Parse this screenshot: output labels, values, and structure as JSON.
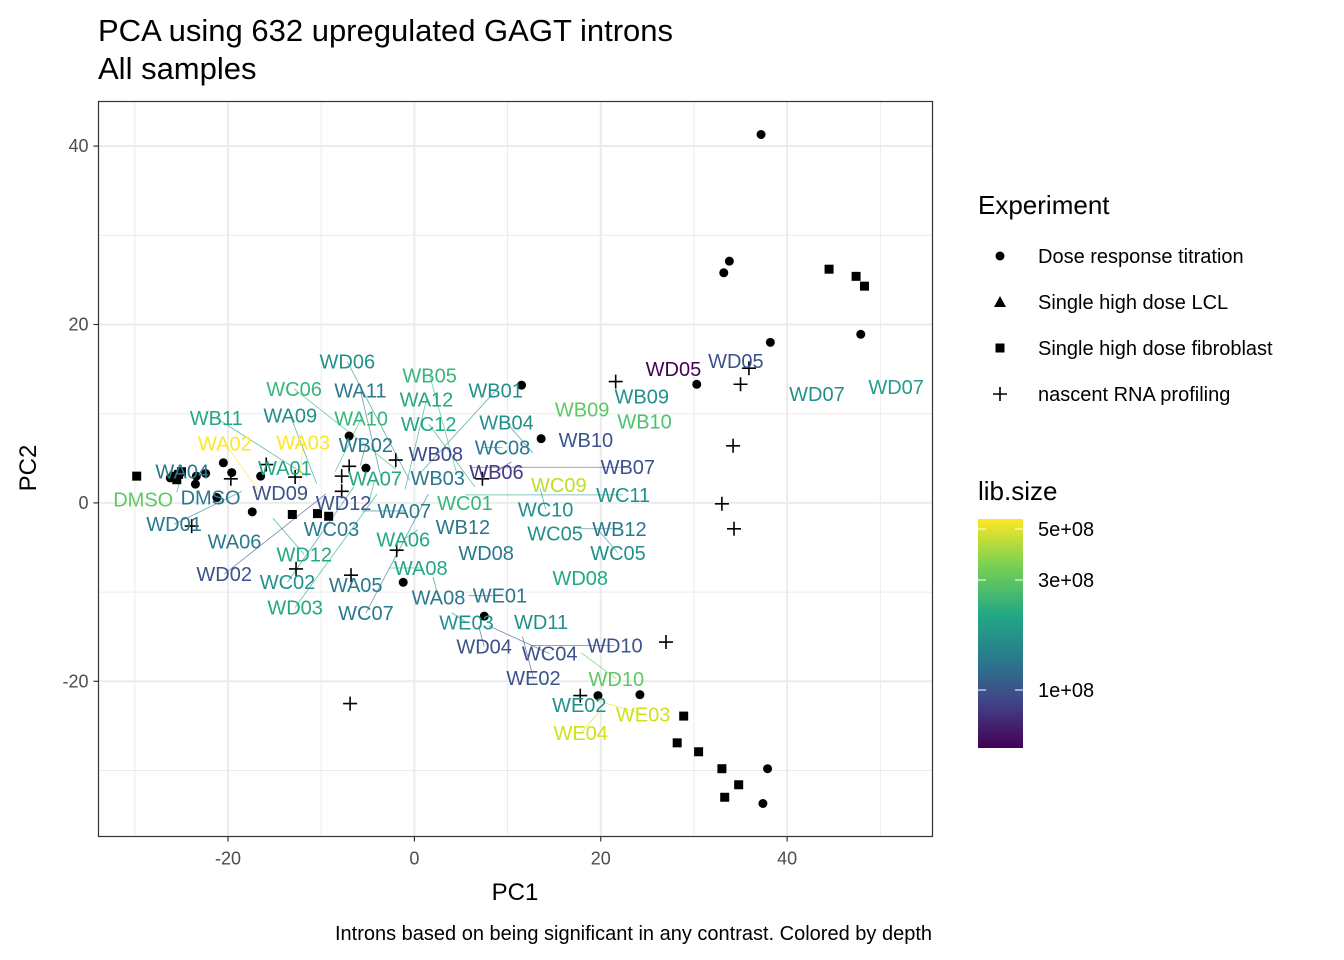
{
  "chart_data": {
    "type": "scatter",
    "title": "PCA using 632 upregulated GAGT introns",
    "subtitle": "All samples",
    "caption": "Introns based on being significant in any contrast. Colored by depth",
    "xlabel": "PC1",
    "ylabel": "PC2",
    "xlim": [
      -33.9,
      55.6
    ],
    "ylim": [
      -37.4,
      45.0
    ],
    "xticks": [
      -20,
      0,
      20,
      40
    ],
    "yticks": [
      -20,
      0,
      20,
      40
    ],
    "grid": true,
    "legend_placement": "right",
    "shape_legend": {
      "title": "Experiment",
      "entries": [
        {
          "label": "Dose response titration",
          "shape": "circle"
        },
        {
          "label": "Single high dose LCL",
          "shape": "triangle"
        },
        {
          "label": "Single high dose fibroblast",
          "shape": "square"
        },
        {
          "label": "nascent RNA profiling",
          "shape": "cross"
        }
      ]
    },
    "color_legend": {
      "title": "lib.size",
      "ticks": [
        "5e+08",
        "3e+08",
        "1e+08"
      ],
      "palette": [
        "#fde725",
        "#7ad151",
        "#22a884",
        "#2a788e",
        "#414487",
        "#440154"
      ]
    },
    "points": [
      {
        "x": 37.2,
        "y": 41.3,
        "shape": "circle"
      },
      {
        "x": 33.8,
        "y": 27.1,
        "shape": "circle"
      },
      {
        "x": 33.2,
        "y": 25.8,
        "shape": "circle"
      },
      {
        "x": 38.2,
        "y": 18.0,
        "shape": "circle"
      },
      {
        "x": 47.9,
        "y": 18.9,
        "shape": "circle"
      },
      {
        "x": 30.3,
        "y": 13.3,
        "shape": "circle"
      },
      {
        "x": 11.5,
        "y": 13.2,
        "shape": "circle"
      },
      {
        "x": -7.0,
        "y": 7.5,
        "shape": "circle"
      },
      {
        "x": 13.6,
        "y": 7.2,
        "shape": "circle"
      },
      {
        "x": -5.2,
        "y": 3.9,
        "shape": "circle"
      },
      {
        "x": -20.5,
        "y": 4.5,
        "shape": "circle"
      },
      {
        "x": -19.6,
        "y": 3.4,
        "shape": "circle"
      },
      {
        "x": -22.4,
        "y": 3.3,
        "shape": "circle"
      },
      {
        "x": -23.4,
        "y": 3.0,
        "shape": "circle"
      },
      {
        "x": -16.5,
        "y": 3.0,
        "shape": "circle"
      },
      {
        "x": -23.5,
        "y": 2.1,
        "shape": "circle"
      },
      {
        "x": -21.2,
        "y": 0.6,
        "shape": "circle"
      },
      {
        "x": -17.4,
        "y": -1.0,
        "shape": "circle"
      },
      {
        "x": -26.2,
        "y": 2.8,
        "shape": "circle"
      },
      {
        "x": -1.2,
        "y": -8.9,
        "shape": "circle"
      },
      {
        "x": 7.5,
        "y": -12.7,
        "shape": "circle"
      },
      {
        "x": 19.7,
        "y": -21.6,
        "shape": "circle"
      },
      {
        "x": 24.2,
        "y": -21.5,
        "shape": "circle"
      },
      {
        "x": 37.9,
        "y": -29.8,
        "shape": "circle"
      },
      {
        "x": 37.4,
        "y": -33.7,
        "shape": "circle"
      },
      {
        "x": 44.5,
        "y": 26.2,
        "shape": "square"
      },
      {
        "x": 47.4,
        "y": 25.4,
        "shape": "square"
      },
      {
        "x": 48.3,
        "y": 24.3,
        "shape": "square"
      },
      {
        "x": -29.8,
        "y": 3.0,
        "shape": "square"
      },
      {
        "x": -25.8,
        "y": 3.0,
        "shape": "square"
      },
      {
        "x": -25.3,
        "y": 3.2,
        "shape": "square"
      },
      {
        "x": -25.0,
        "y": 3.5,
        "shape": "square"
      },
      {
        "x": -25.5,
        "y": 2.6,
        "shape": "square"
      },
      {
        "x": -13.1,
        "y": -1.3,
        "shape": "square"
      },
      {
        "x": -10.4,
        "y": -1.2,
        "shape": "square"
      },
      {
        "x": -9.2,
        "y": -1.5,
        "shape": "square"
      },
      {
        "x": 28.9,
        "y": -23.9,
        "shape": "square"
      },
      {
        "x": 28.2,
        "y": -26.9,
        "shape": "square"
      },
      {
        "x": 30.5,
        "y": -27.9,
        "shape": "square"
      },
      {
        "x": 33.0,
        "y": -29.8,
        "shape": "square"
      },
      {
        "x": 33.3,
        "y": -33.0,
        "shape": "square"
      },
      {
        "x": 34.8,
        "y": -31.6,
        "shape": "square"
      },
      {
        "x": 21.6,
        "y": 13.6,
        "shape": "cross"
      },
      {
        "x": 35.9,
        "y": 15.1,
        "shape": "cross"
      },
      {
        "x": 35.0,
        "y": 13.3,
        "shape": "cross"
      },
      {
        "x": 34.2,
        "y": 6.4,
        "shape": "cross"
      },
      {
        "x": 33.0,
        "y": -0.1,
        "shape": "cross"
      },
      {
        "x": 34.3,
        "y": -2.9,
        "shape": "cross"
      },
      {
        "x": 27.0,
        "y": -15.6,
        "shape": "cross"
      },
      {
        "x": 17.8,
        "y": -21.6,
        "shape": "cross"
      },
      {
        "x": -6.9,
        "y": -22.5,
        "shape": "cross"
      },
      {
        "x": -12.7,
        "y": -7.4,
        "shape": "cross"
      },
      {
        "x": -6.8,
        "y": -8.1,
        "shape": "cross"
      },
      {
        "x": -1.9,
        "y": -5.3,
        "shape": "cross"
      },
      {
        "x": -23.9,
        "y": -2.6,
        "shape": "cross"
      },
      {
        "x": 7.3,
        "y": 2.7,
        "shape": "cross"
      },
      {
        "x": -2.0,
        "y": 4.8,
        "shape": "cross"
      },
      {
        "x": -7.0,
        "y": 4.1,
        "shape": "cross"
      },
      {
        "x": -7.8,
        "y": 3.0,
        "shape": "cross"
      },
      {
        "x": -7.8,
        "y": 1.3,
        "shape": "cross"
      },
      {
        "x": -15.9,
        "y": 4.3,
        "shape": "cross"
      },
      {
        "x": -19.7,
        "y": 2.7,
        "shape": "cross"
      },
      {
        "x": -12.8,
        "y": 2.9,
        "shape": "cross"
      }
    ],
    "labels": [
      {
        "text": "WD05",
        "x": 27.8,
        "y": 15.0,
        "color": "#440154"
      },
      {
        "text": "WD05",
        "x": 34.5,
        "y": 15.9,
        "color": "#3b528b"
      },
      {
        "text": "WB09",
        "x": 24.4,
        "y": 11.9,
        "color": "#21908c"
      },
      {
        "text": "WB09",
        "x": 18.8,
        "y": 11.0,
        "color": "#5ec962"
      },
      {
        "text": "WB10",
        "x": 24.7,
        "y": 9.1,
        "color": "#4ac16d"
      },
      {
        "text": "WB10",
        "x": 19.2,
        "y": 7.6,
        "color": "#3b528b"
      },
      {
        "text": "WD07",
        "x": 43.2,
        "y": 12.2,
        "color": "#21908c"
      },
      {
        "text": "WD07",
        "x": 51.7,
        "y": 13.0,
        "color": "#259c8a"
      },
      {
        "text": "WC09",
        "x": 15.5,
        "y": 2.0,
        "color": "#bddf26"
      },
      {
        "text": "WC10",
        "x": 13.5,
        "y": 1.6,
        "color": "#21908c"
      },
      {
        "text": "WB12",
        "x": 5.2,
        "y": -2.7,
        "color": "#2a788e"
      },
      {
        "text": "WC05",
        "x": 14.3,
        "y": -2.9,
        "color": "#21908c"
      },
      {
        "text": "WB12",
        "x": 17.5,
        "y": -2.9,
        "color": "#2a788e"
      },
      {
        "text": "WC05",
        "x": 19.6,
        "y": -2.9,
        "color": "#21908c"
      },
      {
        "text": "WD08",
        "x": 7.7,
        "y": -5.6,
        "color": "#2a788e"
      },
      {
        "text": "WD08",
        "x": 17.8,
        "y": -8.4,
        "color": "#22a884"
      },
      {
        "text": "WA06",
        "x": -19.3,
        "y": -4.3,
        "color": "#2a788e"
      },
      {
        "text": "WC03",
        "x": -8.9,
        "y": -2.9,
        "color": "#2a788e"
      },
      {
        "text": "WA06",
        "x": 0.4,
        "y": -3.0,
        "color": "#22a884"
      },
      {
        "text": "WA05",
        "x": -6.3,
        "y": -9.2,
        "color": "#2a788e"
      },
      {
        "text": "WA08",
        "x": -2.7,
        "y": -7.3,
        "color": "#22a884"
      },
      {
        "text": "WA08",
        "x": 2.0,
        "y": -8.3,
        "color": "#2a788e"
      },
      {
        "text": "WE01",
        "x": 5.8,
        "y": -10.4,
        "color": "#2a788e"
      },
      {
        "text": "WE03",
        "x": 4.0,
        "y": -12.3,
        "color": "#21908c"
      },
      {
        "text": "WD11",
        "x": 12.8,
        "y": -12.8,
        "color": "#21908c"
      },
      {
        "text": "WD04",
        "x": 6.9,
        "y": -13.8,
        "color": "#3b528b"
      },
      {
        "text": "WC04",
        "x": 8.0,
        "y": -13.8,
        "color": "#3b528b"
      },
      {
        "text": "WE02",
        "x": 11.6,
        "y": -15.0,
        "color": "#3b528b"
      },
      {
        "text": "WD10",
        "x": 12.5,
        "y": -16.0,
        "color": "#3b528b"
      },
      {
        "text": "WD10",
        "x": 17.9,
        "y": -16.8,
        "color": "#5ec962"
      },
      {
        "text": "WE02",
        "x": 16.9,
        "y": -22.1,
        "color": "#21908c"
      },
      {
        "text": "WE03",
        "x": 19.4,
        "y": -22.1,
        "color": "#d0e11c"
      },
      {
        "text": "WE04",
        "x": 20.1,
        "y": -23.1,
        "color": "#d0e11c"
      },
      {
        "text": "DMSO",
        "x": -29.1,
        "y": 0.4,
        "color": "#5ec962"
      },
      {
        "text": "DMSO",
        "x": -23.0,
        "y": 0.6,
        "color": "#2a788e"
      },
      {
        "text": "WA04",
        "x": -25.5,
        "y": 1.2,
        "color": "#2a788e"
      },
      {
        "text": "WD09",
        "x": -14.4,
        "y": 1.1,
        "color": "#3b528b"
      },
      {
        "text": "WD12",
        "x": -15.2,
        "y": -1.7,
        "color": "#22a884"
      },
      {
        "text": "WD12",
        "x": -7.6,
        "y": -1.6,
        "color": "#3b528b"
      },
      {
        "text": "WA07",
        "x": -5.6,
        "y": -0.9,
        "color": "#2a788e"
      },
      {
        "text": "WA07",
        "x": -4.8,
        "y": 0.4,
        "color": "#22a884"
      },
      {
        "text": "WC01",
        "x": 4.3,
        "y": 0.0,
        "color": "#35b779"
      },
      {
        "text": "WB08",
        "x": 2.3,
        "y": 5.5,
        "color": "#3f4788"
      },
      {
        "text": "WC08",
        "x": 7.2,
        "y": 6.2,
        "color": "#2a788e"
      },
      {
        "text": "WB04",
        "x": 12.7,
        "y": 5.6,
        "color": "#21908c"
      },
      {
        "text": "WB06",
        "x": 10.4,
        "y": 4.6,
        "color": "#443983"
      },
      {
        "text": "WA01",
        "x": -13.9,
        "y": 3.9,
        "color": "#22a884"
      },
      {
        "text": "WA02",
        "x": -16.5,
        "y": 1.0,
        "color": "#fde725"
      },
      {
        "text": "WA03",
        "x": -12.5,
        "y": 0.5,
        "color": "#fde725"
      },
      {
        "text": "WB02",
        "x": -5.8,
        "y": 4.2,
        "color": "#2a788e"
      },
      {
        "text": "WC12",
        "x": 6.5,
        "y": 1.8,
        "color": "#22a884"
      },
      {
        "text": "WA09",
        "x": -10.5,
        "y": 2.2,
        "color": "#21908c"
      },
      {
        "text": "WA10",
        "x": -8.5,
        "y": 3.5,
        "color": "#35b779"
      },
      {
        "text": "WA11",
        "x": -3.5,
        "y": 2.5,
        "color": "#2a788e"
      },
      {
        "text": "WA12",
        "x": -1.0,
        "y": 1.5,
        "color": "#22a884"
      },
      {
        "text": "WB01",
        "x": 0.5,
        "y": 3.2,
        "color": "#21908c"
      },
      {
        "text": "WB03",
        "x": 2.5,
        "y": 2.0,
        "color": "#2a788e"
      },
      {
        "text": "WB05",
        "x": 4.5,
        "y": 3.5,
        "color": "#35b779"
      },
      {
        "text": "WB07",
        "x": 6.0,
        "y": 4.0,
        "color": "#3b528b"
      },
      {
        "text": "WB11",
        "x": -11.5,
        "y": 3.0,
        "color": "#22a884"
      },
      {
        "text": "WC02",
        "x": -6.5,
        "y": 1.8,
        "color": "#21908c"
      },
      {
        "text": "WC06",
        "x": -2.0,
        "y": 3.8,
        "color": "#35b779"
      },
      {
        "text": "WC07",
        "x": 1.5,
        "y": 1.0,
        "color": "#2a788e"
      },
      {
        "text": "WC11",
        "x": 5.5,
        "y": 0.9,
        "color": "#21908c"
      },
      {
        "text": "WD01",
        "x": -18.5,
        "y": 1.3,
        "color": "#2a788e"
      },
      {
        "text": "WD02",
        "x": -9.5,
        "y": 1.0,
        "color": "#3b528b"
      },
      {
        "text": "WD03",
        "x": -4.0,
        "y": 1.0,
        "color": "#22a884"
      },
      {
        "text": "WD06",
        "x": -0.5,
        "y": 2.5,
        "color": "#21908c"
      }
    ]
  }
}
